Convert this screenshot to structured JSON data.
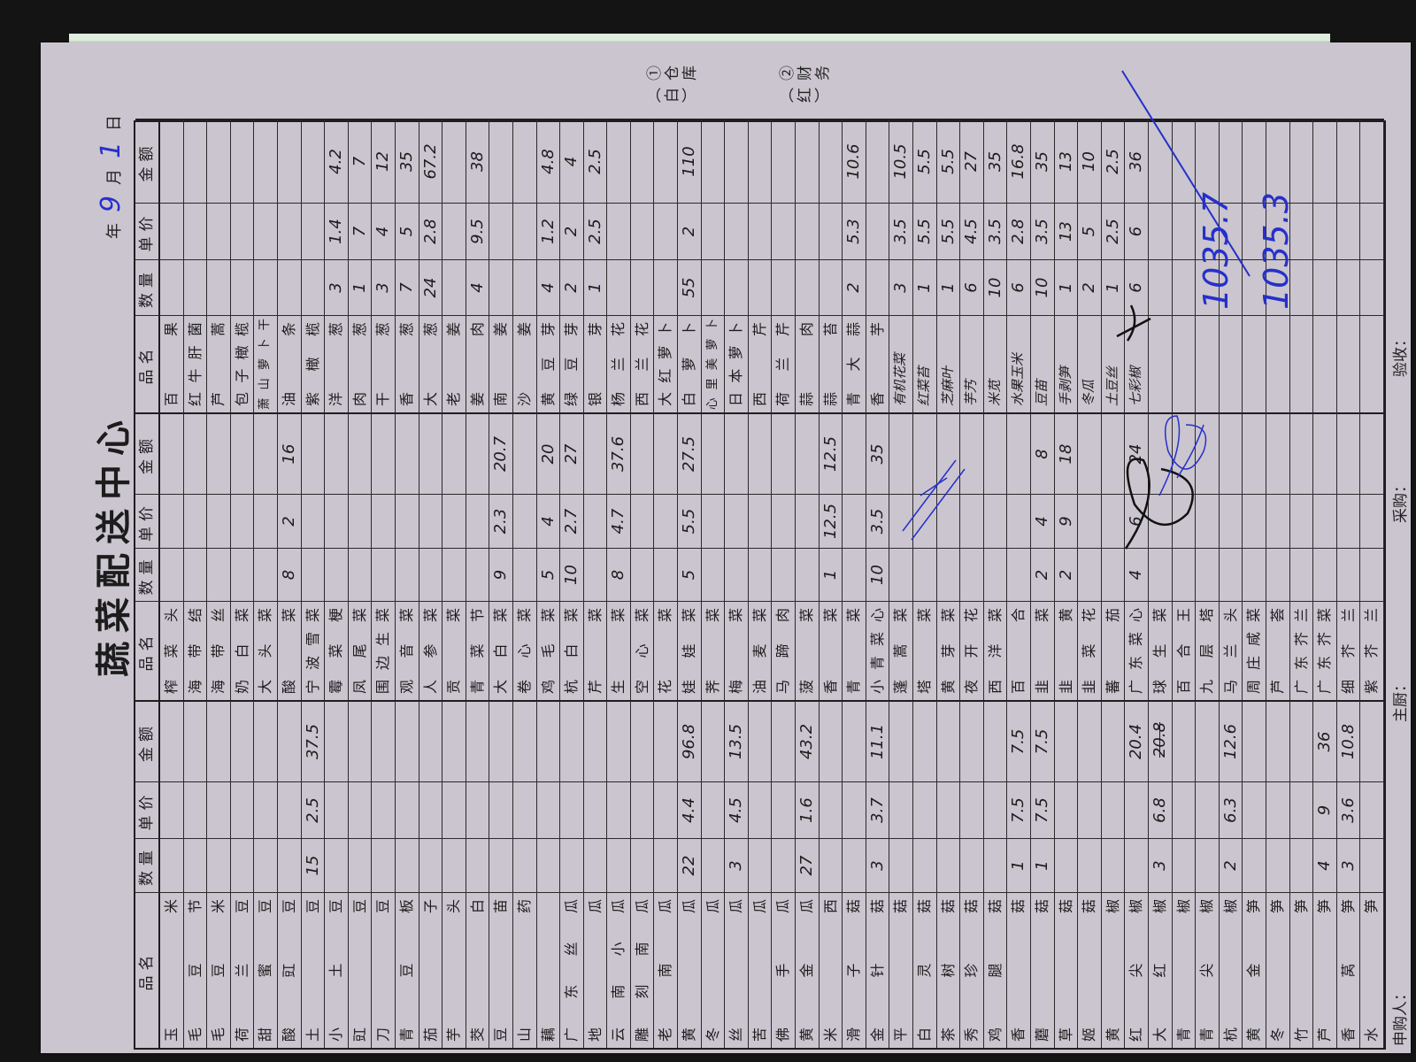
{
  "title": "蔬菜配送中心",
  "date": {
    "year_label": "年",
    "month": "9",
    "month_label": "月",
    "day": "1",
    "day_label": "日"
  },
  "headers": {
    "name": "品名",
    "qty": "数量",
    "price": "单价",
    "amount": "金额"
  },
  "notes": [
    "①仓库（白）",
    "②财务（红）"
  ],
  "groups": [
    {
      "rows": [
        {
          "name": "玉米"
        },
        {
          "name": "毛豆节"
        },
        {
          "name": "毛豆米"
        },
        {
          "name": "荷兰豆"
        },
        {
          "name": "甜蜜豆"
        },
        {
          "name": "酸豇豆"
        },
        {
          "name": "土豆",
          "qty": "15",
          "price": "2.5",
          "amount": "37.5"
        },
        {
          "name": "小土豆"
        },
        {
          "name": "豇豆"
        },
        {
          "name": "刀豆"
        },
        {
          "name": "青豆板"
        },
        {
          "name": "茄子"
        },
        {
          "name": "芋头"
        },
        {
          "name": "茭白"
        },
        {
          "name": "豆苗"
        },
        {
          "name": "山药"
        },
        {
          "name": "藕"
        },
        {
          "name": "广东丝瓜"
        },
        {
          "name": "地瓜"
        },
        {
          "name": "云南小瓜"
        },
        {
          "name": "雕刻南瓜"
        },
        {
          "name": "老南瓜"
        },
        {
          "name": "黄瓜",
          "qty": "22",
          "price": "4.4",
          "amount": "96.8"
        },
        {
          "name": "冬瓜"
        },
        {
          "name": "丝瓜",
          "qty": "3",
          "price": "4.5",
          "amount": "13.5"
        },
        {
          "name": "苦瓜"
        },
        {
          "name": "佛手瓜"
        },
        {
          "name": "黄金瓜",
          "qty": "27",
          "price": "1.6",
          "amount": "43.2"
        },
        {
          "name": "米西"
        },
        {
          "name": "滑子菇"
        },
        {
          "name": "金针菇",
          "qty": "3",
          "price": "3.7",
          "amount": "11.1"
        },
        {
          "name": "平菇"
        },
        {
          "name": "白灵菇"
        },
        {
          "name": "茶树菇"
        },
        {
          "name": "秀珍菇"
        },
        {
          "name": "鸡腿菇"
        },
        {
          "name": "香菇",
          "qty": "1",
          "price": "7.5",
          "amount": "7.5"
        },
        {
          "name": "蘑菇",
          "qty": "1",
          "price": "7.5",
          "amount": "7.5"
        },
        {
          "name": "草菇"
        },
        {
          "name": "姬菇"
        },
        {
          "name": "黄椒"
        },
        {
          "name": "红尖椒",
          "amount": "20.4"
        },
        {
          "name": "大红椒",
          "qty": "3",
          "price": "6.8",
          "amount_struck": "20.8"
        },
        {
          "name": "青椒"
        },
        {
          "name": "青尖椒"
        },
        {
          "name": "杭椒",
          "qty": "2",
          "price": "6.3",
          "amount": "12.6"
        },
        {
          "name": "黄金笋"
        },
        {
          "name": "冬笋"
        },
        {
          "name": "竹笋"
        },
        {
          "name": "芦笋",
          "qty": "4",
          "price": "9",
          "amount": "36"
        },
        {
          "name": "香莴笋",
          "qty": "3",
          "price": "3.6",
          "amount": "10.8"
        },
        {
          "name": "水笋"
        }
      ]
    },
    {
      "rows": [
        {
          "name": "榨菜头"
        },
        {
          "name": "海带结"
        },
        {
          "name": "海带丝"
        },
        {
          "name": "奶白菜"
        },
        {
          "name": "大头菜"
        },
        {
          "name": "酸菜",
          "qty": "8",
          "price": "2",
          "amount": "16"
        },
        {
          "name": "宁波雪菜"
        },
        {
          "name": "霉菜梗"
        },
        {
          "name": "凤尾菜"
        },
        {
          "name": "围边生菜"
        },
        {
          "name": "观音菜"
        },
        {
          "name": "人参菜"
        },
        {
          "name": "贡菜"
        },
        {
          "name": "青菜节"
        },
        {
          "name": "大白菜",
          "qty": "9",
          "price": "2.3",
          "amount": "20.7"
        },
        {
          "name": "卷心菜"
        },
        {
          "name": "鸡毛菜",
          "qty": "5",
          "price": "4",
          "amount": "20"
        },
        {
          "name": "杭白菜",
          "qty": "10",
          "price": "2.7",
          "amount": "27"
        },
        {
          "name": "芹菜"
        },
        {
          "name": "生菜",
          "qty": "8",
          "price": "4.7",
          "amount": "37.6"
        },
        {
          "name": "空心菜"
        },
        {
          "name": "花菜"
        },
        {
          "name": "娃娃菜",
          "qty": "5",
          "price": "5.5",
          "amount": "27.5"
        },
        {
          "name": "荠菜"
        },
        {
          "name": "梅菜"
        },
        {
          "name": "油麦菜"
        },
        {
          "name": "马蹄肉"
        },
        {
          "name": "菠菜"
        },
        {
          "name": "香菜",
          "qty": "1",
          "price": "12.5",
          "amount": "12.5"
        },
        {
          "name": "青菜"
        },
        {
          "name": "小青菜心",
          "qty": "10",
          "price": "3.5",
          "amount": "35"
        },
        {
          "name": "蓬蒿菜"
        },
        {
          "name": "塔菜"
        },
        {
          "name": "黄芽菜"
        },
        {
          "name": "夜开花"
        },
        {
          "name": "西洋菜"
        },
        {
          "name": "百合"
        },
        {
          "name": "韭菜",
          "qty": "2",
          "price": "4",
          "amount": "8"
        },
        {
          "name": "韭黄",
          "qty": "2",
          "price": "9",
          "amount": "18"
        },
        {
          "name": "韭菜花"
        },
        {
          "name": "蕃茄"
        },
        {
          "name": "广东菜心",
          "qty": "4",
          "price": "6",
          "amount": "24"
        },
        {
          "name": "球生菜"
        },
        {
          "name": "百合王"
        },
        {
          "name": "九层塔"
        },
        {
          "name": "马兰头"
        },
        {
          "name": "周庄咸菜"
        },
        {
          "name": "芦荟"
        },
        {
          "name": "广东芥兰"
        },
        {
          "name": "广东芥菜"
        },
        {
          "name": "细芥兰"
        },
        {
          "name": "紫芥兰"
        }
      ]
    },
    {
      "rows": [
        {
          "name": "百果"
        },
        {
          "name": "红牛肝菌"
        },
        {
          "name": "芦蒿"
        },
        {
          "name": "包子橄榄"
        },
        {
          "name": "萧山萝卜干"
        },
        {
          "name": "油条"
        },
        {
          "name": "紫橄榄"
        },
        {
          "name": "洋葱",
          "qty": "3",
          "price": "1.4",
          "amount": "4.2"
        },
        {
          "name": "肉葱",
          "qty": "1",
          "price": "7",
          "amount": "7"
        },
        {
          "name": "干葱",
          "qty": "3",
          "price": "4",
          "amount": "12"
        },
        {
          "name": "香葱",
          "qty": "7",
          "price": "5",
          "amount": "35"
        },
        {
          "name": "大葱",
          "qty": "24",
          "price": "2.8",
          "amount": "67.2"
        },
        {
          "name": "老姜"
        },
        {
          "name": "姜肉",
          "qty": "4",
          "price": "9.5",
          "amount": "38"
        },
        {
          "name": "南姜"
        },
        {
          "name": "沙姜"
        },
        {
          "name": "黄豆芽",
          "qty": "4",
          "price": "1.2",
          "amount": "4.8"
        },
        {
          "name": "绿豆芽",
          "qty": "2",
          "price": "2",
          "amount": "4"
        },
        {
          "name": "银芽",
          "qty": "1",
          "price": "2.5",
          "amount": "2.5"
        },
        {
          "name": "杨兰花"
        },
        {
          "name": "西兰花"
        },
        {
          "name": "大红萝卜"
        },
        {
          "name": "白萝卜",
          "qty": "55",
          "price": "2",
          "amount": "110"
        },
        {
          "name": "心里美萝卜"
        },
        {
          "name": "日本萝卜"
        },
        {
          "name": "西芹"
        },
        {
          "name": "荷兰芹"
        },
        {
          "name": "蒜肉"
        },
        {
          "name": "蒜苔"
        },
        {
          "name": "青大蒜",
          "qty": "2",
          "price": "5.3",
          "amount": "10.6"
        },
        {
          "name": "香芋"
        },
        {
          "name": "有机花菜",
          "hw": true,
          "qty": "3",
          "price": "3.5",
          "amount": "10.5"
        },
        {
          "name": "红菜苔",
          "hw": true,
          "qty": "1",
          "price": "5.5",
          "amount": "5.5"
        },
        {
          "name": "芝麻叶",
          "hw": true,
          "qty": "1",
          "price": "5.5",
          "amount": "5.5"
        },
        {
          "name": "芋艿",
          "hw": true,
          "qty": "6",
          "price": "4.5",
          "amount": "27"
        },
        {
          "name": "米苋",
          "hw": true,
          "qty": "10",
          "price": "3.5",
          "amount": "35"
        },
        {
          "name": "水果玉米",
          "hw": true,
          "qty": "6",
          "price": "2.8",
          "amount": "16.8"
        },
        {
          "name": "豆苗",
          "hw": true,
          "qty": "10",
          "price": "3.5",
          "amount": "35"
        },
        {
          "name": "手剥笋",
          "hw": true,
          "qty": "1",
          "price": "13",
          "amount": "13"
        },
        {
          "name": "冬瓜",
          "hw": true,
          "qty": "2",
          "price": "5",
          "amount": "10"
        },
        {
          "name": "土豆丝",
          "hw": true,
          "qty": "1",
          "price": "2.5",
          "amount": "2.5"
        },
        {
          "name": "七彩椒",
          "hw": true,
          "qty": "6",
          "price": "6",
          "amount": "36"
        }
      ]
    }
  ],
  "totals": [
    "1035.7",
    "1035.3"
  ],
  "footer": {
    "requester": "申购人：",
    "chef": "主厨：",
    "purchaser": "采购：",
    "inspector": "验收："
  },
  "colors": {
    "paper": "#cbc5cf",
    "ink_blue": "#2630c9",
    "print": "#1d1d1d"
  }
}
